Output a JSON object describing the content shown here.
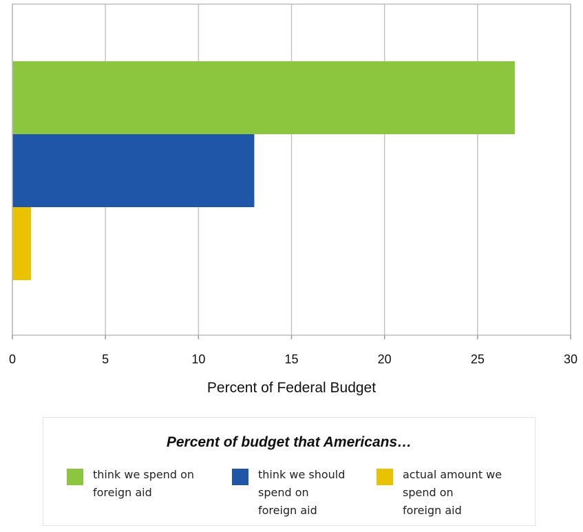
{
  "chart_data": {
    "type": "bar",
    "orientation": "horizontal",
    "xlabel": "Percent of Federal Budget",
    "xlim": [
      0,
      30
    ],
    "xticks": [
      "0",
      "5",
      "10",
      "15",
      "20",
      "25",
      "30"
    ],
    "grid": true,
    "series": [
      {
        "name": "think we spend on foreign aid",
        "color": "#8cc63f",
        "value": 27
      },
      {
        "name": "think we should spend on foreign aid",
        "color": "#1f56a8",
        "value": 13
      },
      {
        "name": "actual amount we spend on foreign aid",
        "color": "#e9c200",
        "value": 1
      }
    ],
    "legend": {
      "title": "Percent of budget that Americans…",
      "placement": "bottom",
      "items": [
        {
          "label": "think we spend on\nforeign aid",
          "color": "#8cc63f"
        },
        {
          "label": "think we should\nspend on\nforeign aid",
          "color": "#1f56a8"
        },
        {
          "label": "actual amount we\nspend on\nforeign aid",
          "color": "#e9c200"
        }
      ]
    }
  }
}
